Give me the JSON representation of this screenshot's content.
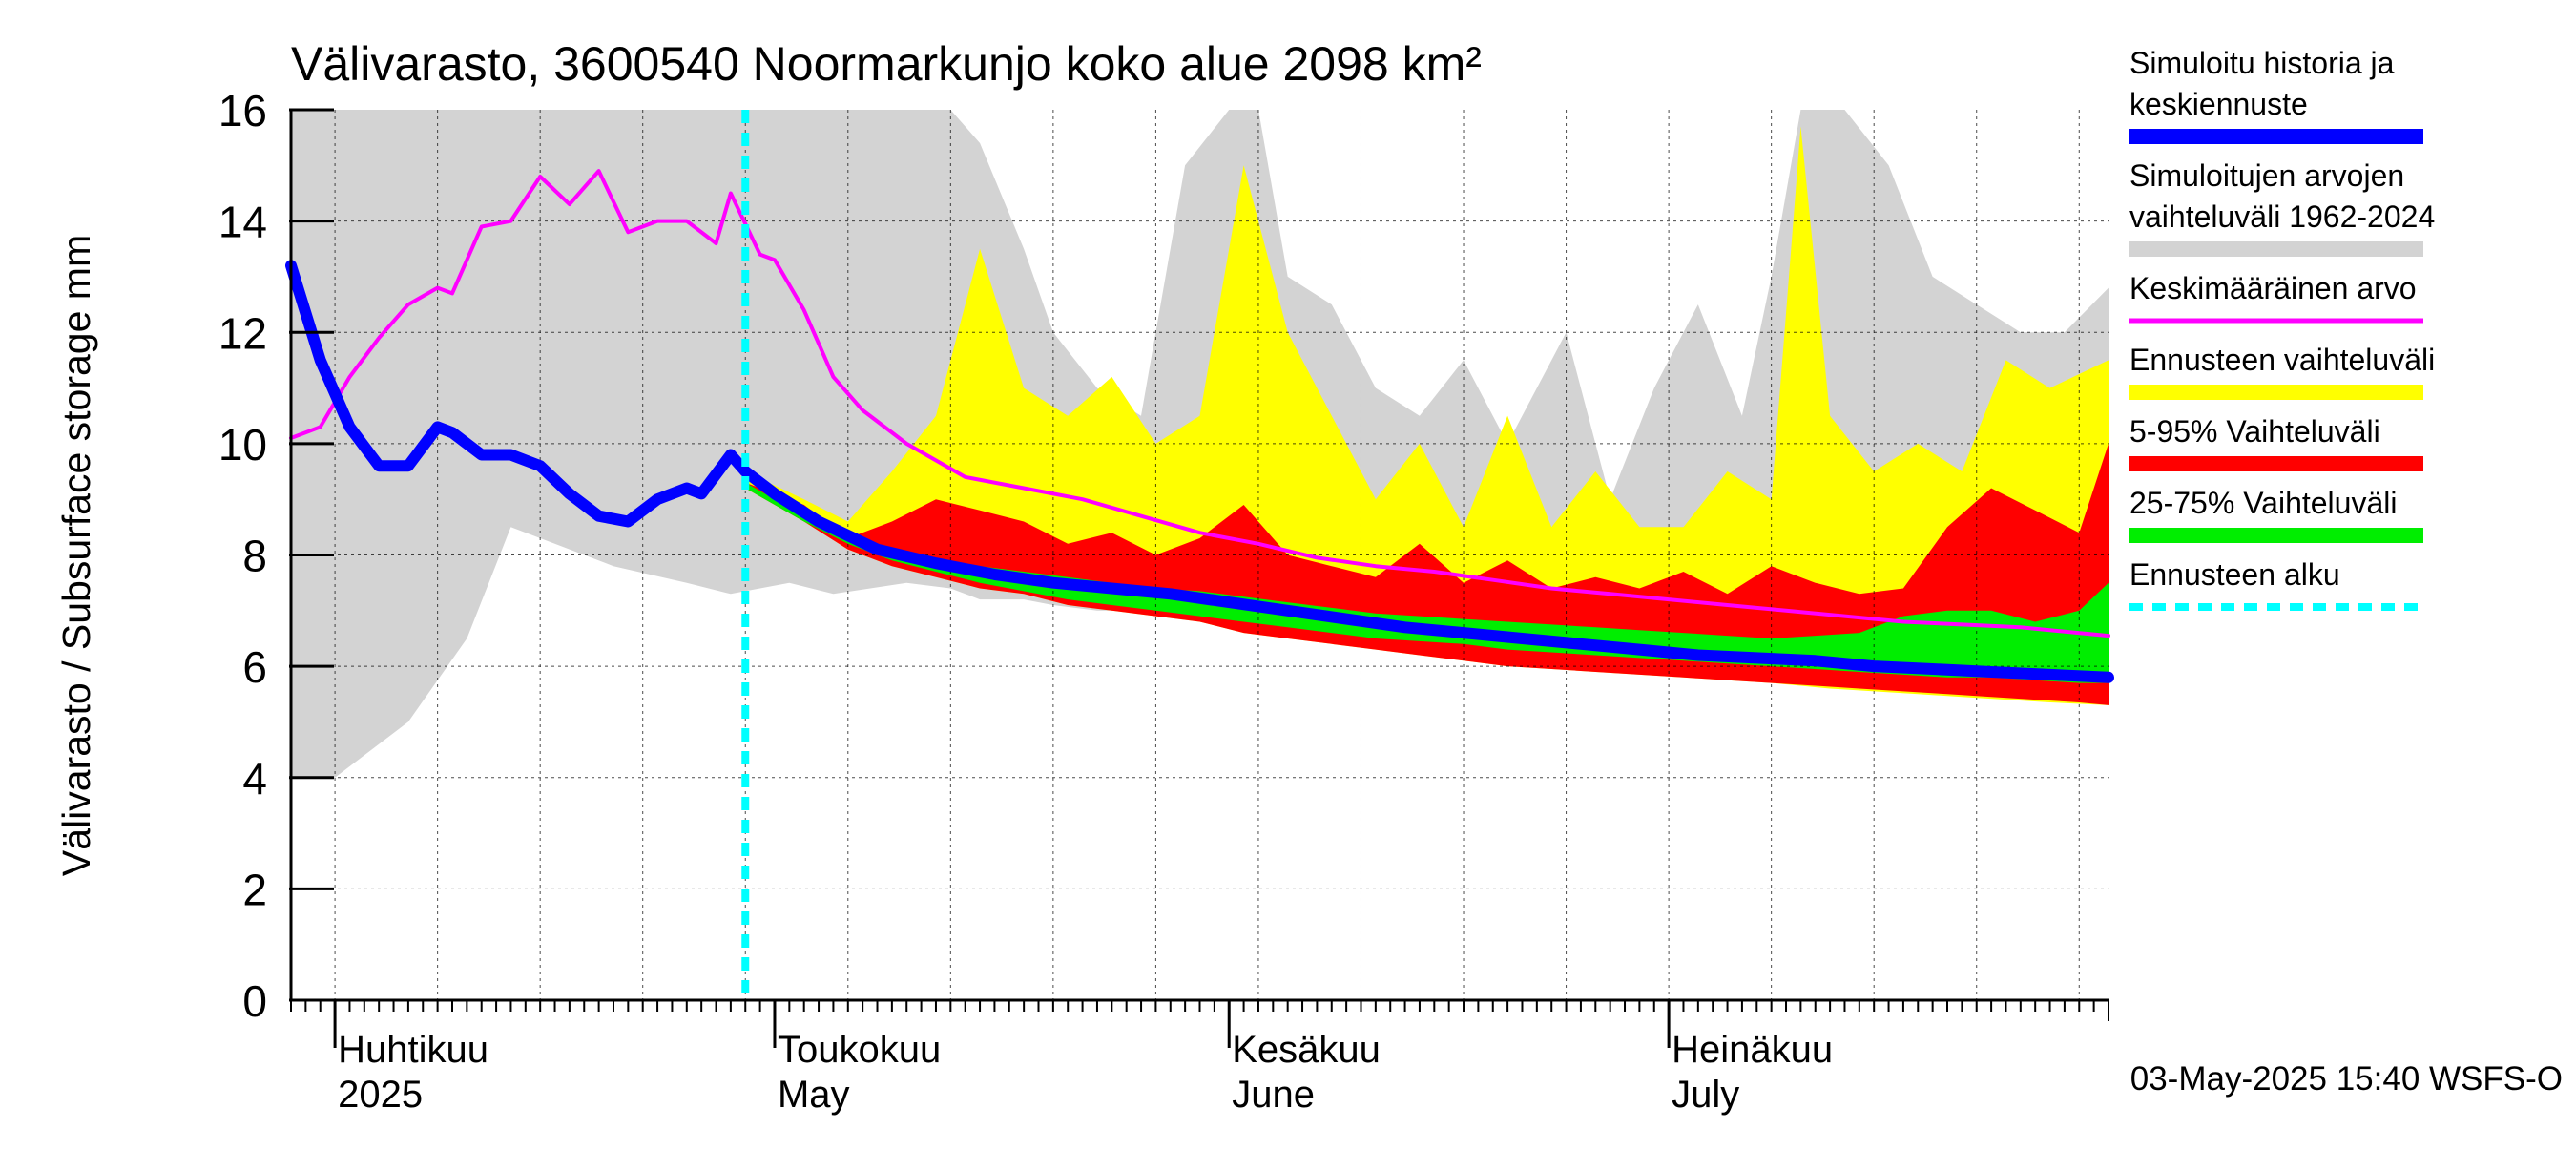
{
  "chart_data": {
    "type": "area",
    "title": "Välivarasto, 3600540 Noormarkunjo koko alue 2098 km²",
    "ylabel": "Välivarasto / Subsurface storage  mm",
    "ylim": [
      0,
      16
    ],
    "yticks": [
      0,
      2,
      4,
      6,
      8,
      10,
      12,
      14,
      16
    ],
    "x_range": [
      "2025-03-29",
      "2025-07-31"
    ],
    "month_labels": [
      {
        "fi": "Huhtikuu",
        "en": "2025",
        "start": "2025-04-01"
      },
      {
        "fi": "Toukokuu",
        "en": "May",
        "start": "2025-05-01"
      },
      {
        "fi": "Kesäkuu",
        "en": "June",
        "start": "2025-06-01"
      },
      {
        "fi": "Heinäkuu",
        "en": "July",
        "start": "2025-07-01"
      }
    ],
    "forecast_start": "2025-04-29",
    "timestamp": "03-May-2025 15:40 WSFS-O",
    "grid": true,
    "legend_position": "right",
    "legend": [
      {
        "label": "Simuloitu historia ja keskiennuste",
        "color": "#0000ff"
      },
      {
        "label": "Simuloitujen arvojen vaihteluväli 1962-2024",
        "color": "#d3d3d3"
      },
      {
        "label": "Keskimääräinen arvo",
        "color": "#ff00ff"
      },
      {
        "label": "Ennusteen vaihteluväli",
        "color": "#ffff00"
      },
      {
        "label": "5-95% Vaihteluväli",
        "color": "#ff0000"
      },
      {
        "label": "25-75% Vaihteluväli",
        "color": "#00ee00"
      },
      {
        "label": "Ennusteen alku",
        "color": "#00ffff"
      }
    ],
    "series": {
      "history_range": {
        "x": [
          "2025-03-29",
          "2025-04-01",
          "2025-04-03",
          "2025-04-06",
          "2025-04-10",
          "2025-04-13",
          "2025-04-16",
          "2025-04-20",
          "2025-04-25",
          "2025-04-28",
          "2025-05-02",
          "2025-05-05",
          "2025-05-10",
          "2025-05-13",
          "2025-05-15",
          "2025-05-18",
          "2025-05-20",
          "2025-05-23",
          "2025-05-26",
          "2025-05-29",
          "2025-06-01",
          "2025-06-03",
          "2025-06-05",
          "2025-06-08",
          "2025-06-11",
          "2025-06-14",
          "2025-06-17",
          "2025-06-20",
          "2025-06-24",
          "2025-06-27",
          "2025-06-30",
          "2025-07-03",
          "2025-07-06",
          "2025-07-08",
          "2025-07-10",
          "2025-07-13",
          "2025-07-16",
          "2025-07-19",
          "2025-07-22",
          "2025-07-25",
          "2025-07-28",
          "2025-07-31"
        ],
        "low": [
          4.0,
          4.0,
          4.4,
          5.0,
          6.5,
          8.5,
          8.2,
          7.8,
          7.5,
          7.3,
          7.5,
          7.3,
          7.5,
          7.4,
          7.2,
          7.2,
          7.1,
          7.0,
          7.0,
          6.9,
          6.8,
          6.7,
          6.6,
          6.6,
          6.5,
          6.5,
          6.4,
          6.4,
          6.3,
          6.3,
          6.2,
          6.2,
          6.2,
          6.1,
          6.1,
          6.0,
          6.0,
          6.0,
          5.9,
          5.9,
          5.9,
          5.8
        ],
        "high": [
          16.0,
          16.0,
          16.0,
          16.0,
          16.0,
          16.0,
          16.0,
          16.0,
          16.0,
          16.0,
          16.0,
          16.0,
          16.0,
          16.0,
          15.4,
          13.5,
          12.0,
          11.0,
          10.5,
          15.0,
          16.0,
          16.0,
          13.0,
          12.5,
          11.0,
          10.5,
          11.5,
          10.0,
          12.0,
          9.0,
          11.0,
          12.5,
          10.5,
          13.0,
          16.0,
          16.0,
          15.0,
          13.0,
          12.5,
          12.0,
          12.0,
          12.8
        ]
      },
      "forecast_range": {
        "x": [
          "2025-04-29",
          "2025-05-03",
          "2025-05-06",
          "2025-05-09",
          "2025-05-12",
          "2025-05-15",
          "2025-05-18",
          "2025-05-21",
          "2025-05-24",
          "2025-05-27",
          "2025-05-30",
          "2025-06-02",
          "2025-06-05",
          "2025-06-08",
          "2025-06-11",
          "2025-06-14",
          "2025-06-17",
          "2025-06-20",
          "2025-06-23",
          "2025-06-26",
          "2025-06-29",
          "2025-07-02",
          "2025-07-05",
          "2025-07-08",
          "2025-07-10",
          "2025-07-12",
          "2025-07-15",
          "2025-07-18",
          "2025-07-21",
          "2025-07-24",
          "2025-07-27",
          "2025-07-31"
        ],
        "low": [
          9.2,
          8.6,
          8.1,
          7.8,
          7.6,
          7.4,
          7.3,
          7.1,
          7.0,
          6.9,
          6.8,
          6.6,
          6.5,
          6.4,
          6.3,
          6.2,
          6.1,
          6.0,
          5.95,
          5.9,
          5.85,
          5.8,
          5.75,
          5.7,
          5.65,
          5.6,
          5.55,
          5.5,
          5.45,
          5.4,
          5.35,
          5.3
        ],
        "high": [
          9.5,
          9.0,
          8.6,
          9.5,
          10.5,
          13.5,
          11.0,
          10.5,
          11.2,
          10.0,
          10.5,
          15.0,
          12.0,
          10.5,
          9.0,
          10.0,
          8.5,
          10.5,
          8.5,
          9.5,
          8.5,
          8.5,
          9.5,
          9.0,
          15.7,
          10.5,
          9.5,
          10.0,
          9.5,
          11.5,
          11.0,
          11.5
        ]
      },
      "p5_95": {
        "x": [
          "2025-04-29",
          "2025-05-03",
          "2025-05-06",
          "2025-05-09",
          "2025-05-12",
          "2025-05-15",
          "2025-05-18",
          "2025-05-21",
          "2025-05-24",
          "2025-05-27",
          "2025-05-30",
          "2025-06-02",
          "2025-06-05",
          "2025-06-08",
          "2025-06-11",
          "2025-06-14",
          "2025-06-17",
          "2025-06-20",
          "2025-06-23",
          "2025-06-26",
          "2025-06-29",
          "2025-07-02",
          "2025-07-05",
          "2025-07-08",
          "2025-07-11",
          "2025-07-14",
          "2025-07-17",
          "2025-07-20",
          "2025-07-23",
          "2025-07-26",
          "2025-07-29",
          "2025-07-31"
        ],
        "low": [
          9.2,
          8.6,
          8.1,
          7.8,
          7.6,
          7.4,
          7.3,
          7.1,
          7.0,
          6.9,
          6.8,
          6.6,
          6.5,
          6.4,
          6.3,
          6.2,
          6.1,
          6.0,
          5.95,
          5.9,
          5.85,
          5.8,
          5.75,
          5.7,
          5.65,
          5.6,
          5.55,
          5.5,
          5.45,
          5.4,
          5.35,
          5.3
        ],
        "high": [
          9.3,
          8.9,
          8.3,
          8.6,
          9.0,
          8.8,
          8.6,
          8.2,
          8.4,
          8.0,
          8.3,
          8.9,
          8.0,
          7.8,
          7.6,
          8.2,
          7.5,
          7.9,
          7.4,
          7.6,
          7.4,
          7.7,
          7.3,
          7.8,
          7.5,
          7.3,
          7.4,
          8.5,
          9.2,
          8.8,
          8.4,
          10.0
        ]
      },
      "p25_75": {
        "x": [
          "2025-04-29",
          "2025-05-03",
          "2025-05-06",
          "2025-05-09",
          "2025-05-12",
          "2025-05-15",
          "2025-05-18",
          "2025-05-21",
          "2025-05-24",
          "2025-05-27",
          "2025-05-30",
          "2025-06-02",
          "2025-06-05",
          "2025-06-08",
          "2025-06-11",
          "2025-06-14",
          "2025-06-17",
          "2025-06-20",
          "2025-06-23",
          "2025-06-26",
          "2025-06-29",
          "2025-07-02",
          "2025-07-05",
          "2025-07-08",
          "2025-07-11",
          "2025-07-14",
          "2025-07-17",
          "2025-07-20",
          "2025-07-23",
          "2025-07-26",
          "2025-07-29",
          "2025-07-31"
        ],
        "low": [
          9.2,
          8.6,
          8.2,
          7.9,
          7.7,
          7.5,
          7.35,
          7.2,
          7.1,
          7.0,
          6.9,
          6.8,
          6.7,
          6.6,
          6.5,
          6.45,
          6.4,
          6.3,
          6.25,
          6.2,
          6.15,
          6.1,
          6.05,
          6.0,
          5.95,
          5.9,
          5.85,
          5.8,
          5.8,
          5.75,
          5.7,
          5.7
        ],
        "high": [
          9.3,
          8.7,
          8.3,
          8.05,
          7.9,
          7.8,
          7.7,
          7.6,
          7.5,
          7.4,
          7.35,
          7.25,
          7.15,
          7.05,
          6.95,
          6.9,
          6.85,
          6.8,
          6.75,
          6.7,
          6.65,
          6.6,
          6.55,
          6.5,
          6.55,
          6.6,
          6.9,
          7.0,
          7.0,
          6.8,
          7.0,
          7.5
        ]
      },
      "mean": {
        "x": [
          "2025-03-29",
          "2025-03-31",
          "2025-04-02",
          "2025-04-04",
          "2025-04-06",
          "2025-04-08",
          "2025-04-09",
          "2025-04-11",
          "2025-04-13",
          "2025-04-15",
          "2025-04-17",
          "2025-04-19",
          "2025-04-21",
          "2025-04-23",
          "2025-04-25",
          "2025-04-27",
          "2025-04-28",
          "2025-04-30",
          "2025-05-01",
          "2025-05-03",
          "2025-05-05",
          "2025-05-07",
          "2025-05-10",
          "2025-05-14",
          "2025-05-18",
          "2025-05-22",
          "2025-05-26",
          "2025-05-30",
          "2025-06-03",
          "2025-06-07",
          "2025-06-11",
          "2025-06-15",
          "2025-06-19",
          "2025-06-23",
          "2025-06-27",
          "2025-07-01",
          "2025-07-05",
          "2025-07-09",
          "2025-07-13",
          "2025-07-17",
          "2025-07-21",
          "2025-07-25",
          "2025-07-31"
        ],
        "values": [
          10.1,
          10.3,
          11.2,
          11.9,
          12.5,
          12.8,
          12.7,
          13.9,
          14.0,
          14.8,
          14.3,
          14.9,
          13.8,
          14.0,
          14.0,
          13.6,
          14.5,
          13.4,
          13.3,
          12.4,
          11.2,
          10.6,
          10.0,
          9.4,
          9.2,
          9.0,
          8.7,
          8.4,
          8.2,
          7.95,
          7.8,
          7.7,
          7.55,
          7.4,
          7.3,
          7.2,
          7.1,
          7.0,
          6.9,
          6.8,
          6.75,
          6.7,
          6.55
        ]
      },
      "simulated": {
        "x": [
          "2025-03-29",
          "2025-03-31",
          "2025-04-02",
          "2025-04-04",
          "2025-04-06",
          "2025-04-08",
          "2025-04-09",
          "2025-04-11",
          "2025-04-13",
          "2025-04-15",
          "2025-04-17",
          "2025-04-19",
          "2025-04-21",
          "2025-04-23",
          "2025-04-25",
          "2025-04-26",
          "2025-04-28",
          "2025-04-29",
          "2025-05-01",
          "2025-05-04",
          "2025-05-08",
          "2025-05-12",
          "2025-05-16",
          "2025-05-20",
          "2025-05-24",
          "2025-05-28",
          "2025-06-01",
          "2025-06-05",
          "2025-06-09",
          "2025-06-13",
          "2025-06-17",
          "2025-06-21",
          "2025-06-25",
          "2025-06-29",
          "2025-07-03",
          "2025-07-07",
          "2025-07-11",
          "2025-07-15",
          "2025-07-19",
          "2025-07-23",
          "2025-07-27",
          "2025-07-31"
        ],
        "values": [
          13.2,
          11.5,
          10.3,
          9.6,
          9.6,
          10.3,
          10.2,
          9.8,
          9.8,
          9.6,
          9.1,
          8.7,
          8.6,
          9.0,
          9.2,
          9.1,
          9.8,
          9.5,
          9.1,
          8.6,
          8.1,
          7.85,
          7.65,
          7.5,
          7.4,
          7.3,
          7.15,
          7.0,
          6.85,
          6.7,
          6.6,
          6.5,
          6.4,
          6.3,
          6.2,
          6.15,
          6.1,
          6.0,
          5.95,
          5.9,
          5.85,
          5.8
        ]
      }
    }
  }
}
